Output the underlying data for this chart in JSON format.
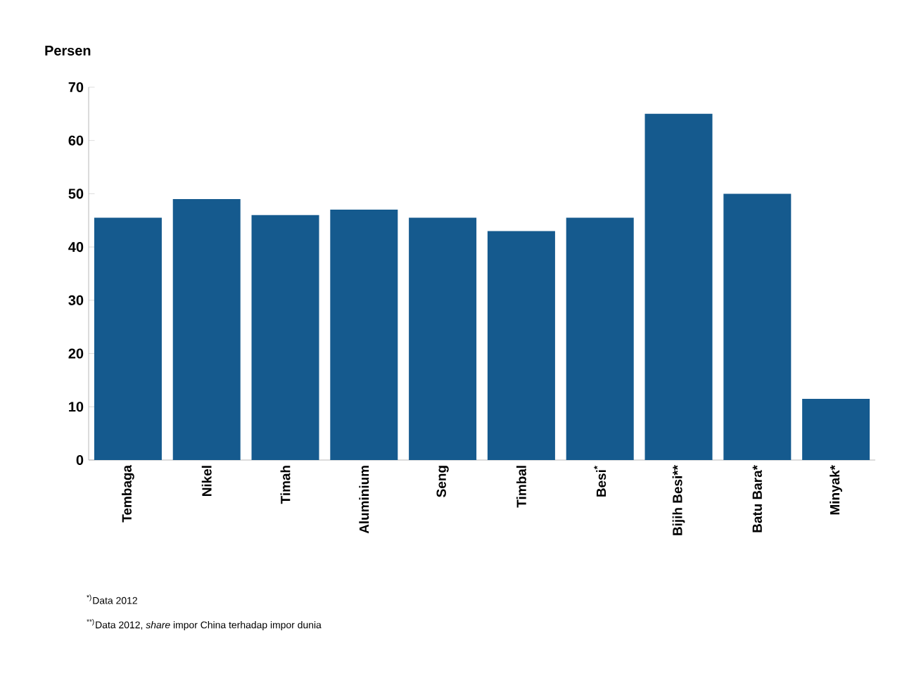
{
  "chart_data": {
    "type": "bar",
    "ylabel": "Persen",
    "categories": [
      "Tembaga",
      "Nikel",
      "Timah",
      "Aluminium",
      "Seng",
      "Timbal",
      "Besi$^{*}$",
      "Bijih Besi**",
      "Batu Bara*",
      "Minyak*"
    ],
    "values": [
      45.5,
      49,
      46,
      47,
      45.5,
      43,
      45.5,
      65,
      50,
      11.5
    ],
    "color": "#155a8e",
    "ylim": [
      0,
      70
    ],
    "yticks": [
      0,
      10,
      20,
      30,
      40,
      50,
      60,
      70
    ],
    "grid": false,
    "annotations": [
      "$^{*)}$Data 2012",
      "$^{**)}$Data 2012, *share* impor China terhadap impor dunia"
    ]
  }
}
